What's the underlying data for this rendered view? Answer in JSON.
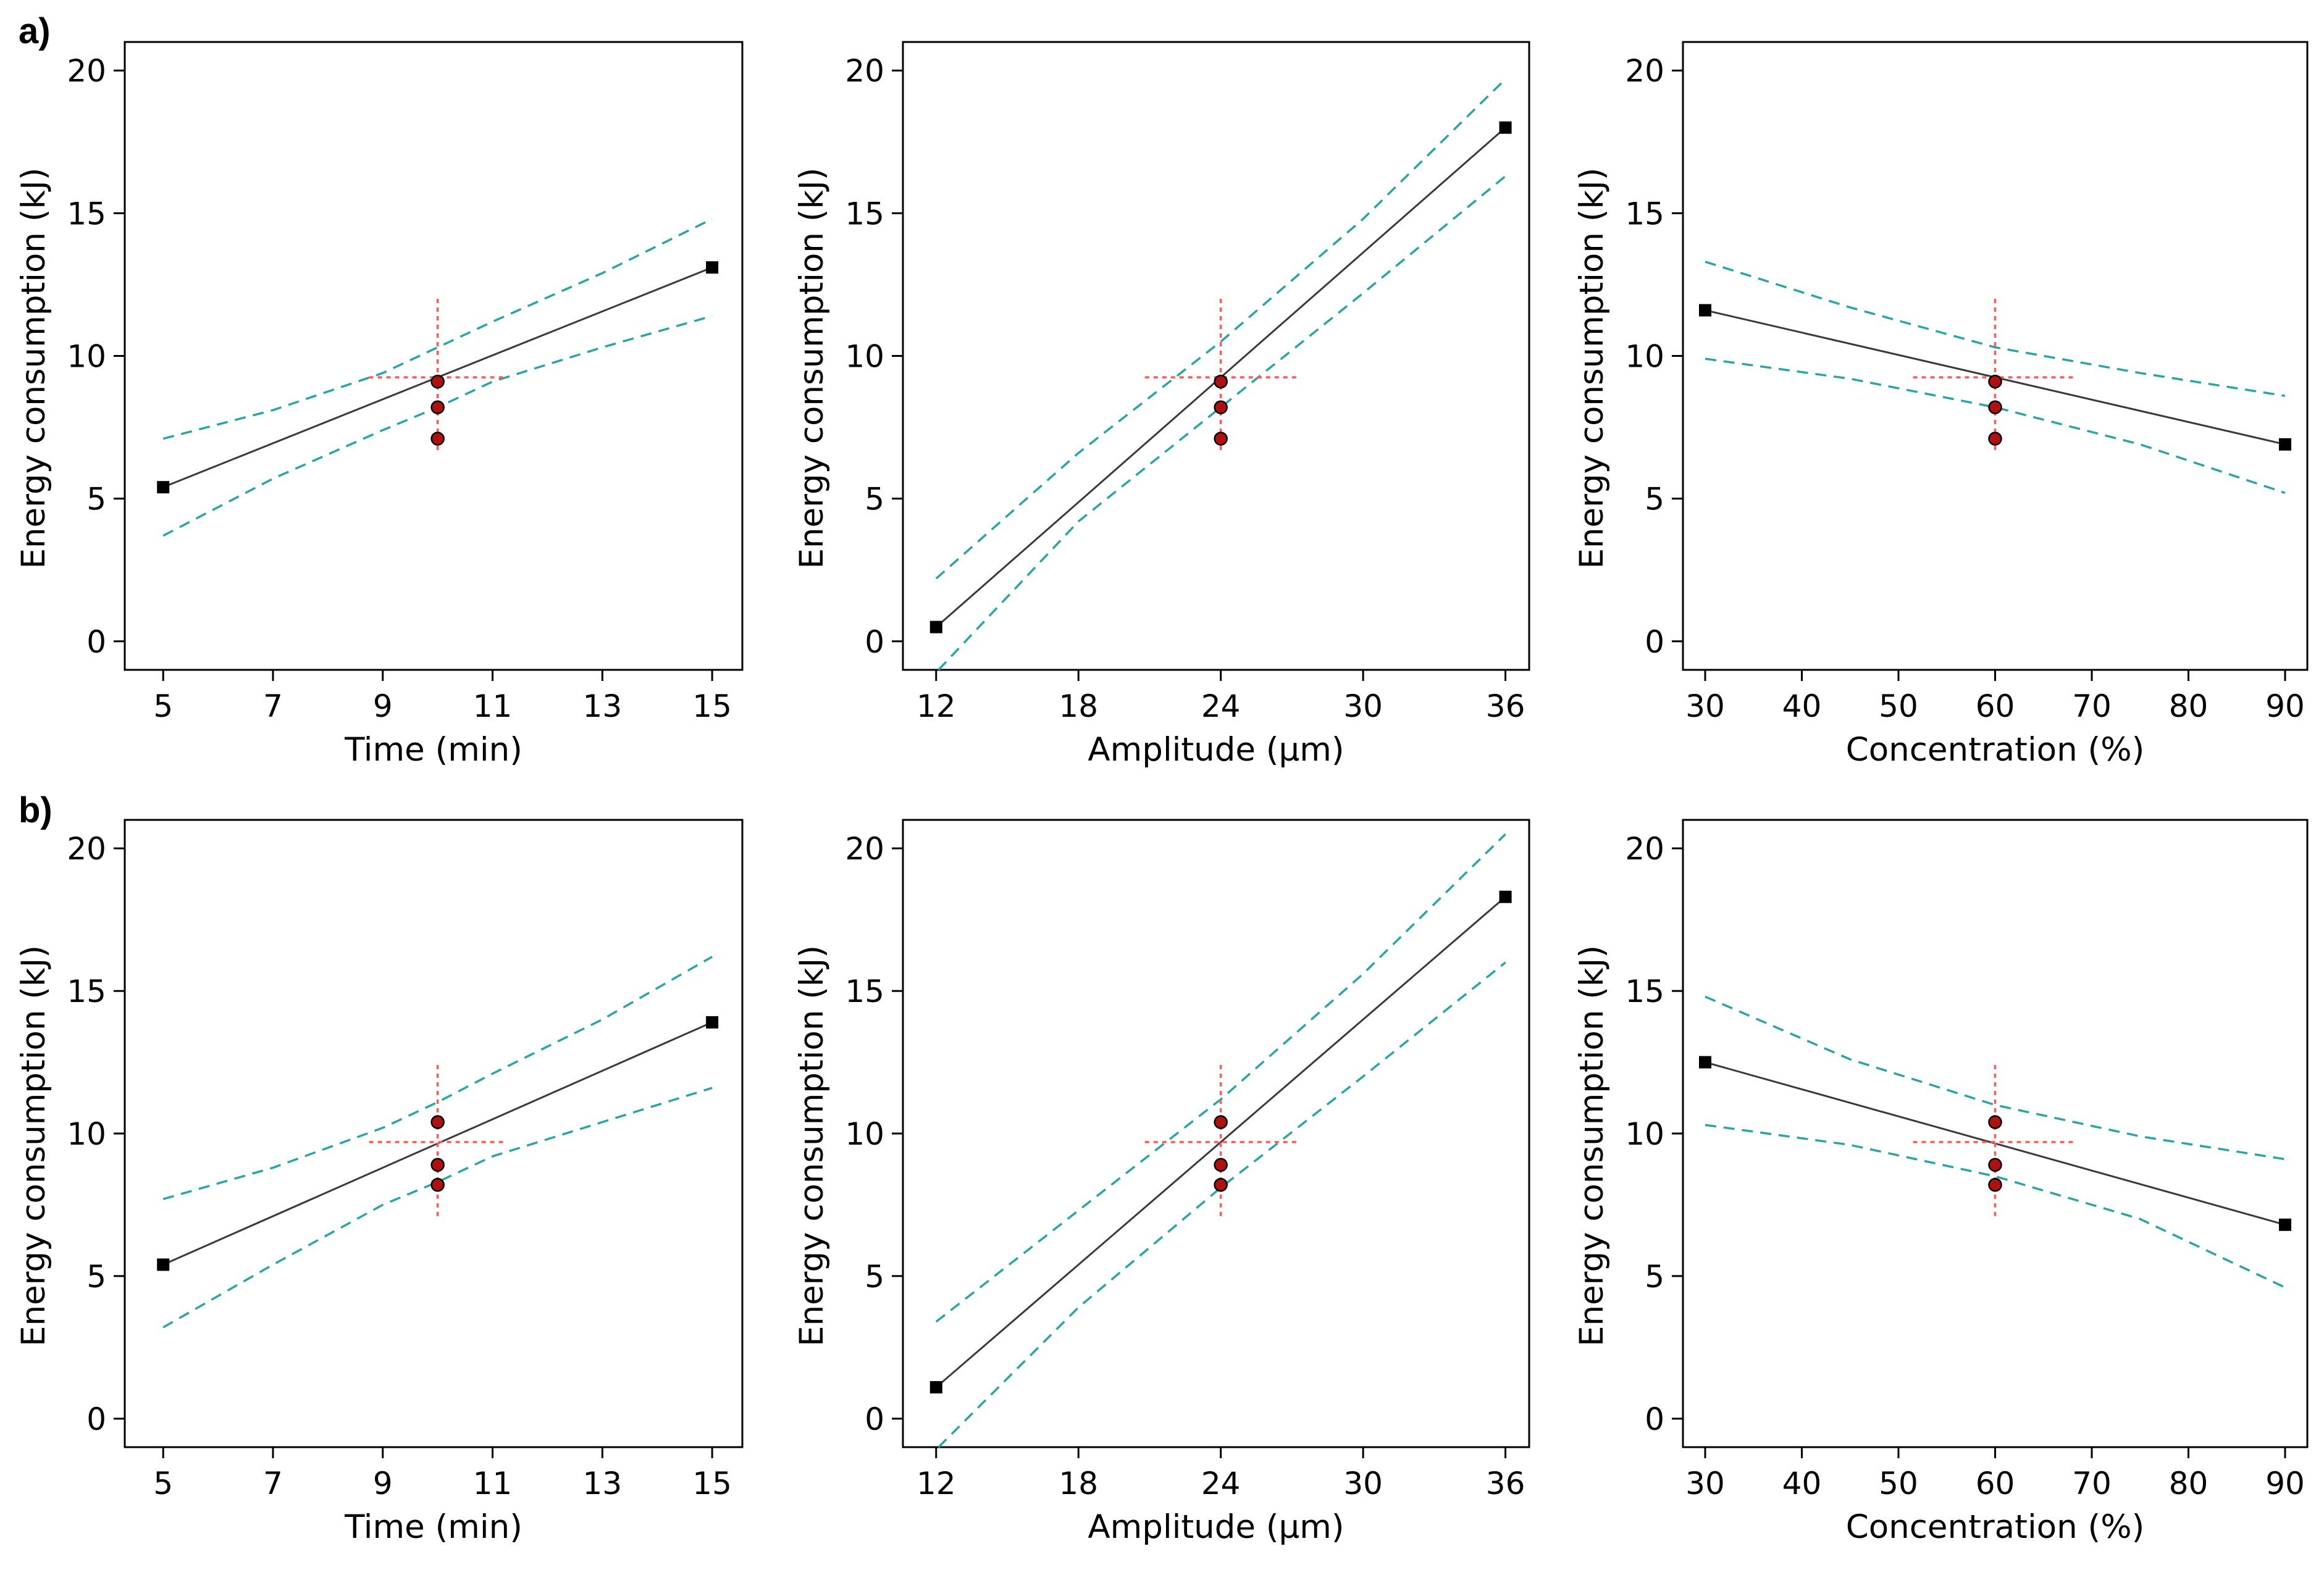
{
  "figure": {
    "rows": [
      {
        "tag": "a)"
      },
      {
        "tag": "b)"
      }
    ]
  },
  "colors": {
    "fit": "#3a3a3a",
    "confidence_band": "#2aa5a5",
    "reference_cross": "#ff5a5a",
    "center_points": "#b01010",
    "end_markers": "#000000"
  },
  "chart_data": [
    {
      "id": "a1",
      "row": 0,
      "col": 0,
      "type": "line",
      "xlabel": "Time  (min)",
      "ylabel": "Energy consumption (kJ)",
      "xlim": [
        4.3,
        15.55
      ],
      "ylim": [
        -1.0,
        21.0
      ],
      "xticks": [
        5,
        7,
        9,
        11,
        13,
        15
      ],
      "yticks": [
        0,
        5,
        10,
        15,
        20
      ],
      "fit": {
        "x": [
          5,
          15
        ],
        "y": [
          5.4,
          13.1
        ]
      },
      "ci_upper": {
        "x": [
          5,
          7,
          9,
          10,
          11,
          13,
          15
        ],
        "y": [
          7.1,
          8.1,
          9.4,
          10.3,
          11.2,
          12.9,
          14.8
        ]
      },
      "ci_lower": {
        "x": [
          5,
          7,
          9,
          10,
          11,
          13,
          15
        ],
        "y": [
          3.7,
          5.7,
          7.4,
          8.2,
          9.1,
          10.3,
          11.4
        ]
      },
      "end_points": {
        "x": [
          5,
          15
        ],
        "y": [
          5.4,
          13.1
        ]
      },
      "center_points": {
        "x": [
          10,
          10,
          10
        ],
        "y": [
          9.1,
          8.2,
          7.1
        ]
      },
      "reference": {
        "x": 10,
        "y": 9.25,
        "x_span": [
          8.75,
          11.25
        ],
        "y_span": [
          6.7,
          12.0
        ]
      }
    },
    {
      "id": "a2",
      "row": 0,
      "col": 1,
      "type": "line",
      "xlabel": "Amplitude (μm)",
      "ylabel": "Energy consumption (kJ)",
      "xlim": [
        10.6,
        37.0
      ],
      "ylim": [
        -1.0,
        21.0
      ],
      "xticks": [
        12,
        18,
        24,
        30,
        36
      ],
      "yticks": [
        0,
        5,
        10,
        15,
        20
      ],
      "fit": {
        "x": [
          12,
          36
        ],
        "y": [
          0.5,
          18.0
        ]
      },
      "ci_upper": {
        "x": [
          12,
          18,
          24,
          30,
          36
        ],
        "y": [
          2.2,
          6.6,
          10.5,
          14.8,
          19.7
        ]
      },
      "ci_lower": {
        "x": [
          12.1,
          18,
          24,
          30,
          36
        ],
        "y": [
          -1.0,
          4.2,
          8.2,
          12.2,
          16.3
        ]
      },
      "end_points": {
        "x": [
          12,
          36
        ],
        "y": [
          0.5,
          18.0
        ]
      },
      "center_points": {
        "x": [
          24,
          24,
          24
        ],
        "y": [
          9.1,
          8.2,
          7.1
        ]
      },
      "reference": {
        "x": 24,
        "y": 9.25,
        "x_span": [
          20.8,
          27.2
        ],
        "y_span": [
          6.7,
          12.0
        ]
      }
    },
    {
      "id": "a3",
      "row": 0,
      "col": 2,
      "type": "line",
      "xlabel": "Concentration (%)",
      "ylabel": "Energy consumption (kJ)",
      "xlim": [
        27.7,
        92.3
      ],
      "ylim": [
        -1.0,
        21.0
      ],
      "xticks": [
        30,
        40,
        50,
        60,
        70,
        80,
        90
      ],
      "yticks": [
        0,
        5,
        10,
        15,
        20
      ],
      "fit": {
        "x": [
          30,
          90
        ],
        "y": [
          11.6,
          6.9
        ]
      },
      "ci_upper": {
        "x": [
          30,
          45,
          60,
          75,
          90
        ],
        "y": [
          13.3,
          11.7,
          10.3,
          9.4,
          8.6
        ]
      },
      "ci_lower": {
        "x": [
          30,
          45,
          60,
          75,
          90
        ],
        "y": [
          9.9,
          9.2,
          8.2,
          6.9,
          5.2
        ]
      },
      "end_points": {
        "x": [
          30,
          90
        ],
        "y": [
          11.6,
          6.9
        ]
      },
      "center_points": {
        "x": [
          60,
          60,
          60
        ],
        "y": [
          9.1,
          8.2,
          7.1
        ]
      },
      "reference": {
        "x": 60,
        "y": 9.25,
        "x_span": [
          51.5,
          68.5
        ],
        "y_span": [
          6.7,
          12.0
        ]
      }
    },
    {
      "id": "b1",
      "row": 1,
      "col": 0,
      "type": "line",
      "xlabel": "Time  (min)",
      "ylabel": "Energy consumption (kJ)",
      "xlim": [
        4.3,
        15.55
      ],
      "ylim": [
        -1.0,
        21.0
      ],
      "xticks": [
        5,
        7,
        9,
        11,
        13,
        15
      ],
      "yticks": [
        0,
        5,
        10,
        15,
        20
      ],
      "fit": {
        "x": [
          5,
          15
        ],
        "y": [
          5.4,
          13.9
        ]
      },
      "ci_upper": {
        "x": [
          5,
          7,
          9,
          10,
          11,
          13,
          15
        ],
        "y": [
          7.7,
          8.8,
          10.2,
          11.1,
          12.1,
          14.0,
          16.2
        ]
      },
      "ci_lower": {
        "x": [
          5,
          7,
          9,
          10,
          11,
          13,
          15
        ],
        "y": [
          3.2,
          5.4,
          7.5,
          8.3,
          9.2,
          10.4,
          11.6
        ]
      },
      "end_points": {
        "x": [
          5,
          15
        ],
        "y": [
          5.4,
          13.9
        ]
      },
      "center_points": {
        "x": [
          10,
          10,
          10
        ],
        "y": [
          10.4,
          8.9,
          8.2
        ]
      },
      "reference": {
        "x": 10,
        "y": 9.7,
        "x_span": [
          8.75,
          11.25
        ],
        "y_span": [
          7.1,
          12.5
        ]
      }
    },
    {
      "id": "b2",
      "row": 1,
      "col": 1,
      "type": "line",
      "xlabel": "Amplitude (μm)",
      "ylabel": "Energy consumption (kJ)",
      "xlim": [
        10.6,
        37.0
      ],
      "ylim": [
        -1.0,
        21.0
      ],
      "xticks": [
        12,
        18,
        24,
        30,
        36
      ],
      "yticks": [
        0,
        5,
        10,
        15,
        20
      ],
      "fit": {
        "x": [
          12,
          36
        ],
        "y": [
          1.1,
          18.3
        ]
      },
      "ci_upper": {
        "x": [
          12,
          18,
          24,
          30,
          36
        ],
        "y": [
          3.4,
          7.3,
          11.2,
          15.6,
          20.5
        ]
      },
      "ci_lower": {
        "x": [
          12.1,
          18,
          24,
          30,
          36
        ],
        "y": [
          -1.0,
          3.9,
          8.1,
          12.0,
          16.0
        ]
      },
      "end_points": {
        "x": [
          12,
          36
        ],
        "y": [
          1.1,
          18.3
        ]
      },
      "center_points": {
        "x": [
          24,
          24,
          24
        ],
        "y": [
          10.4,
          8.9,
          8.2
        ]
      },
      "reference": {
        "x": 24,
        "y": 9.7,
        "x_span": [
          20.8,
          27.2
        ],
        "y_span": [
          7.1,
          12.5
        ]
      }
    },
    {
      "id": "b3",
      "row": 1,
      "col": 2,
      "type": "line",
      "xlabel": "Concentration (%)",
      "ylabel": "Energy consumption (kJ)",
      "xlim": [
        27.7,
        92.3
      ],
      "ylim": [
        -1.0,
        21.0
      ],
      "xticks": [
        30,
        40,
        50,
        60,
        70,
        80,
        90
      ],
      "yticks": [
        0,
        5,
        10,
        15,
        20
      ],
      "fit": {
        "x": [
          30,
          90
        ],
        "y": [
          12.5,
          6.8
        ]
      },
      "ci_upper": {
        "x": [
          30,
          45,
          60,
          75,
          90
        ],
        "y": [
          14.8,
          12.6,
          11.0,
          9.9,
          9.1
        ]
      },
      "ci_lower": {
        "x": [
          30,
          45,
          60,
          75,
          90
        ],
        "y": [
          10.3,
          9.6,
          8.5,
          7.0,
          4.6
        ]
      },
      "end_points": {
        "x": [
          30,
          90
        ],
        "y": [
          12.5,
          6.8
        ]
      },
      "center_points": {
        "x": [
          60,
          60,
          60
        ],
        "y": [
          10.4,
          8.9,
          8.2
        ]
      },
      "reference": {
        "x": 60,
        "y": 9.7,
        "x_span": [
          51.5,
          68.5
        ],
        "y_span": [
          7.1,
          12.5
        ]
      }
    }
  ]
}
